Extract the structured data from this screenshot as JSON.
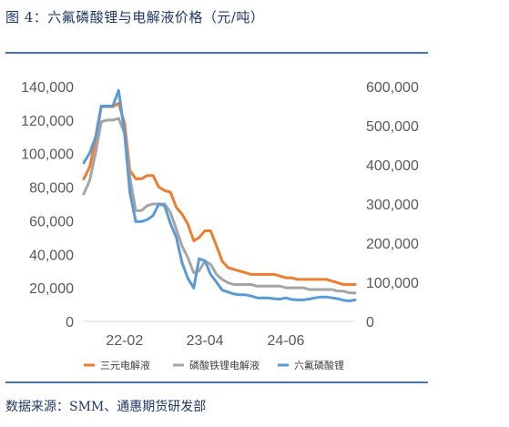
{
  "figure_title": "图 4：六氟磷酸锂与电解液价格（元/吨）",
  "source": "数据来源：SMM、通惠期货研发部",
  "chart_data": {
    "type": "line",
    "title": "",
    "x_ticks": [
      "22-02",
      "23-04",
      "24-06"
    ],
    "y_left": {
      "ticks": [
        "0",
        "20,000",
        "40,000",
        "60,000",
        "80,000",
        "100,000",
        "120,000",
        "140,000"
      ],
      "ylim": [
        0,
        140000
      ]
    },
    "y_right": {
      "ticks": [
        "0",
        "100,000",
        "200,000",
        "300,000",
        "400,000",
        "500,000",
        "600,000"
      ],
      "ylim": [
        0,
        600000
      ]
    },
    "grid": false,
    "legend_position": "bottom",
    "series": [
      {
        "name": "三元电解液",
        "color": "#ed7d31",
        "axis": "left",
        "x": [
          "2021-07",
          "2021-08",
          "2021-09",
          "2021-10",
          "2021-11",
          "2021-12",
          "2022-01",
          "2022-02",
          "2022-03",
          "2022-04",
          "2022-05",
          "2022-06",
          "2022-07",
          "2022-08",
          "2022-09",
          "2022-10",
          "2022-11",
          "2022-12",
          "2023-01",
          "2023-02",
          "2023-03",
          "2023-04",
          "2023-05",
          "2023-06",
          "2023-07",
          "2023-08",
          "2023-09",
          "2023-10",
          "2023-11",
          "2023-12",
          "2024-01",
          "2024-02",
          "2024-03",
          "2024-04",
          "2024-05",
          "2024-06",
          "2024-07",
          "2024-08",
          "2024-09",
          "2024-10",
          "2024-11",
          "2024-12",
          "2025-01",
          "2025-02",
          "2025-03",
          "2025-04",
          "2025-05",
          "2025-06"
        ],
        "values": [
          85000,
          92000,
          108000,
          128000,
          128000,
          128000,
          130000,
          118000,
          90000,
          85000,
          85000,
          87000,
          87000,
          80000,
          78000,
          77000,
          68000,
          64000,
          58000,
          48000,
          50000,
          54000,
          54000,
          45000,
          36000,
          32000,
          31000,
          30000,
          29000,
          28000,
          28000,
          28000,
          28000,
          28000,
          27000,
          26000,
          26000,
          25000,
          25000,
          25000,
          25000,
          25000,
          25000,
          24000,
          23000,
          22000,
          22000,
          22000
        ]
      },
      {
        "name": "磷酸铁锂电解液",
        "color": "#a5a5a5",
        "axis": "left",
        "x": [
          "2021-07",
          "2021-08",
          "2021-09",
          "2021-10",
          "2021-11",
          "2021-12",
          "2022-01",
          "2022-02",
          "2022-03",
          "2022-04",
          "2022-05",
          "2022-06",
          "2022-07",
          "2022-08",
          "2022-09",
          "2022-10",
          "2022-11",
          "2022-12",
          "2023-01",
          "2023-02",
          "2023-03",
          "2023-04",
          "2023-05",
          "2023-06",
          "2023-07",
          "2023-08",
          "2023-09",
          "2023-10",
          "2023-11",
          "2023-12",
          "2024-01",
          "2024-02",
          "2024-03",
          "2024-04",
          "2024-05",
          "2024-06",
          "2024-07",
          "2024-08",
          "2024-09",
          "2024-10",
          "2024-11",
          "2024-12",
          "2025-01",
          "2025-02",
          "2025-03",
          "2025-04",
          "2025-05",
          "2025-06"
        ],
        "values": [
          76000,
          84000,
          100000,
          119000,
          120000,
          120000,
          121000,
          112000,
          86000,
          66000,
          66000,
          69000,
          70000,
          70000,
          70000,
          65000,
          55000,
          45000,
          38000,
          29000,
          30000,
          36000,
          34000,
          28000,
          25000,
          23000,
          22000,
          22000,
          22000,
          22000,
          21000,
          21000,
          21000,
          21000,
          21000,
          20000,
          20000,
          20000,
          20000,
          19000,
          19000,
          19000,
          19000,
          19000,
          18000,
          18000,
          17000,
          17000
        ]
      },
      {
        "name": "六氟磷酸锂",
        "color": "#5b9bd5",
        "axis": "right",
        "x": [
          "2021-07",
          "2021-08",
          "2021-09",
          "2021-10",
          "2021-11",
          "2021-12",
          "2022-01",
          "2022-02",
          "2022-03",
          "2022-04",
          "2022-05",
          "2022-06",
          "2022-07",
          "2022-08",
          "2022-09",
          "2022-10",
          "2022-11",
          "2022-12",
          "2023-01",
          "2023-02",
          "2023-03",
          "2023-04",
          "2023-05",
          "2023-06",
          "2023-07",
          "2023-08",
          "2023-09",
          "2023-10",
          "2023-11",
          "2023-12",
          "2024-01",
          "2024-02",
          "2024-03",
          "2024-04",
          "2024-05",
          "2024-06",
          "2024-07",
          "2024-08",
          "2024-09",
          "2024-10",
          "2024-11",
          "2024-12",
          "2025-01",
          "2025-02",
          "2025-03",
          "2025-04",
          "2025-05",
          "2025-06"
        ],
        "values": [
          405000,
          430000,
          470000,
          550000,
          550000,
          550000,
          590000,
          480000,
          330000,
          255000,
          255000,
          260000,
          270000,
          300000,
          295000,
          250000,
          215000,
          150000,
          110000,
          85000,
          160000,
          155000,
          120000,
          100000,
          80000,
          75000,
          70000,
          68000,
          68000,
          65000,
          60000,
          60000,
          60000,
          58000,
          57000,
          60000,
          56000,
          55000,
          55000,
          57000,
          60000,
          62000,
          62000,
          60000,
          58000,
          54000,
          52000,
          55000
        ]
      }
    ]
  }
}
